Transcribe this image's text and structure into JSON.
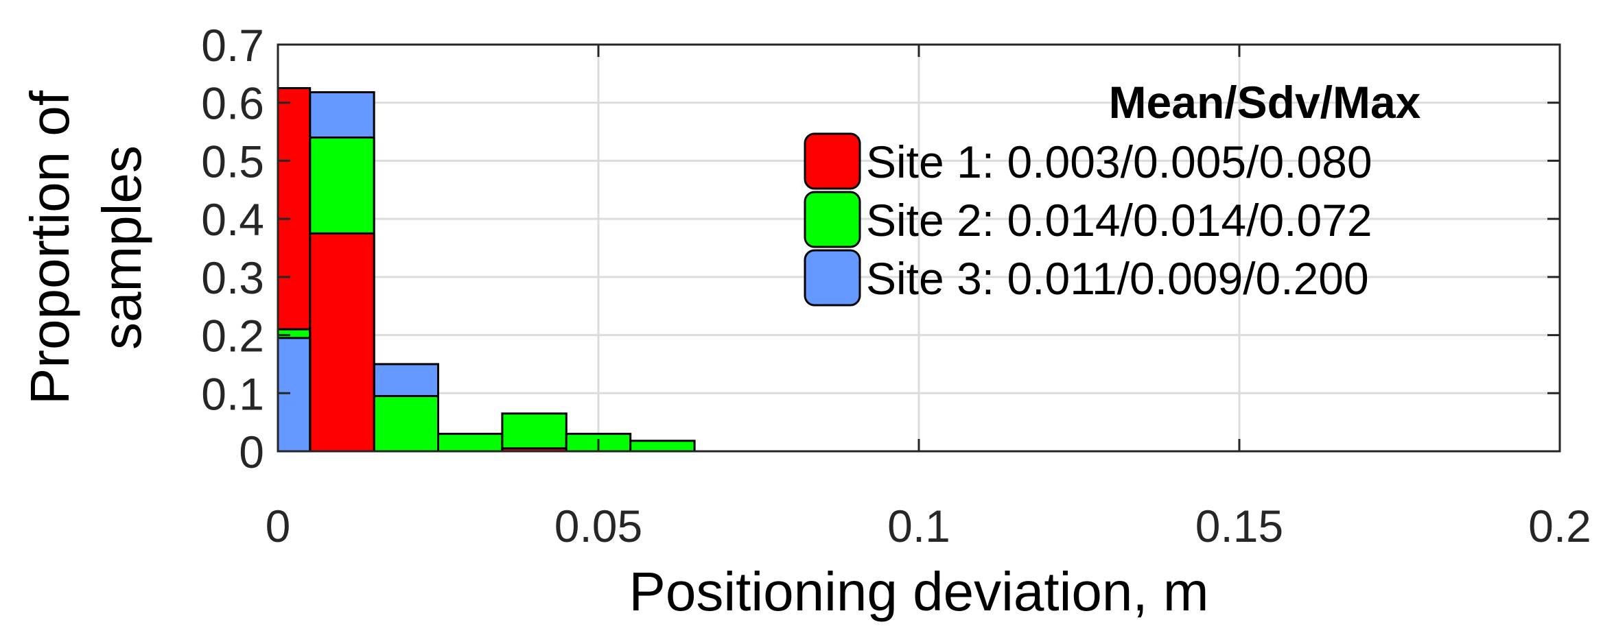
{
  "chart_data": {
    "type": "bar",
    "xlabel": "Positioning deviation, m",
    "ylabel_lines": [
      "Proportion of",
      "samples"
    ],
    "xlim": [
      0,
      0.2
    ],
    "ylim": [
      0,
      0.7
    ],
    "xticks": [
      0,
      0.05,
      0.1,
      0.15,
      0.2
    ],
    "xtick_labels": [
      "0",
      "0.05",
      "0.1",
      "0.15",
      "0.2"
    ],
    "yticks": [
      0,
      0.1,
      0.2,
      0.3,
      0.4,
      0.5,
      0.6,
      0.7
    ],
    "ytick_labels": [
      "0",
      "0.1",
      "0.2",
      "0.3",
      "0.4",
      "0.5",
      "0.6",
      "0.7"
    ],
    "grid": true,
    "legend_title": "Mean/Sdv/Max",
    "legend_position": "top-right",
    "series": [
      {
        "name": "Site 1: 0.003/0.005/0.080",
        "color": "#ff0000",
        "bins": [
          [
            0,
            0.005,
            0.625
          ],
          [
            0.005,
            0.015,
            0.375
          ],
          [
            0.035,
            0.045,
            0.005
          ]
        ]
      },
      {
        "name": "Site 2: 0.014/0.014/0.072",
        "color": "#00ff00",
        "bins": [
          [
            0,
            0.005,
            0.21
          ],
          [
            0.005,
            0.015,
            0.54
          ],
          [
            0.015,
            0.025,
            0.095
          ],
          [
            0.025,
            0.035,
            0.03
          ],
          [
            0.035,
            0.045,
            0.065
          ],
          [
            0.045,
            0.055,
            0.03
          ],
          [
            0.055,
            0.065,
            0.018
          ]
        ]
      },
      {
        "name": "Site 3: 0.011/0.009/0.200",
        "color": "#6699ff",
        "bins": [
          [
            0,
            0.005,
            0.195
          ],
          [
            0.005,
            0.015,
            0.618
          ],
          [
            0.015,
            0.025,
            0.15
          ]
        ]
      }
    ],
    "draw_order": [
      {
        "series": 2,
        "bin": 2
      },
      {
        "series": 1,
        "bin": 2
      },
      {
        "series": 2,
        "bin": 1
      },
      {
        "series": 1,
        "bin": 1
      },
      {
        "series": 0,
        "bin": 1
      },
      {
        "series": 1,
        "bin": 3
      },
      {
        "series": 1,
        "bin": 4
      },
      {
        "series": 0,
        "bin": 2
      },
      {
        "series": 1,
        "bin": 5
      },
      {
        "series": 1,
        "bin": 6
      },
      {
        "series": 0,
        "bin": 0
      },
      {
        "series": 1,
        "bin": 0
      },
      {
        "series": 2,
        "bin": 0
      }
    ]
  }
}
